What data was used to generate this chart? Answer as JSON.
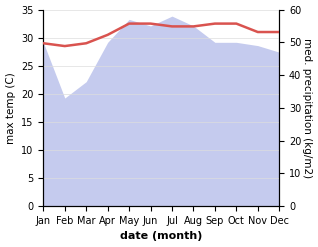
{
  "months": [
    "Jan",
    "Feb",
    "Mar",
    "Apr",
    "May",
    "Jun",
    "Jul",
    "Aug",
    "Sep",
    "Oct",
    "Nov",
    "Dec"
  ],
  "x": [
    0,
    1,
    2,
    3,
    4,
    5,
    6,
    7,
    8,
    9,
    10,
    11
  ],
  "temp": [
    29.0,
    28.5,
    29.0,
    30.5,
    32.5,
    32.5,
    32.0,
    32.0,
    32.5,
    32.5,
    31.0,
    31.0
  ],
  "precip": [
    50,
    33,
    38,
    50,
    57,
    55,
    58,
    55,
    50,
    50,
    49,
    47
  ],
  "temp_color": "#d9534f",
  "precip_fill_color": "#c5cbee",
  "ylim_temp": [
    0,
    35
  ],
  "ylim_precip": [
    0,
    60
  ],
  "xlabel": "date (month)",
  "ylabel_left": "max temp (C)",
  "ylabel_right": "med. precipitation (kg/m2)",
  "temp_linewidth": 1.8,
  "xlabel_fontsize": 8,
  "ylabel_fontsize": 7.5,
  "tick_fontsize": 7,
  "yticks_left": [
    0,
    5,
    10,
    15,
    20,
    25,
    30,
    35
  ],
  "yticks_right": [
    0,
    10,
    20,
    30,
    40,
    50,
    60
  ]
}
